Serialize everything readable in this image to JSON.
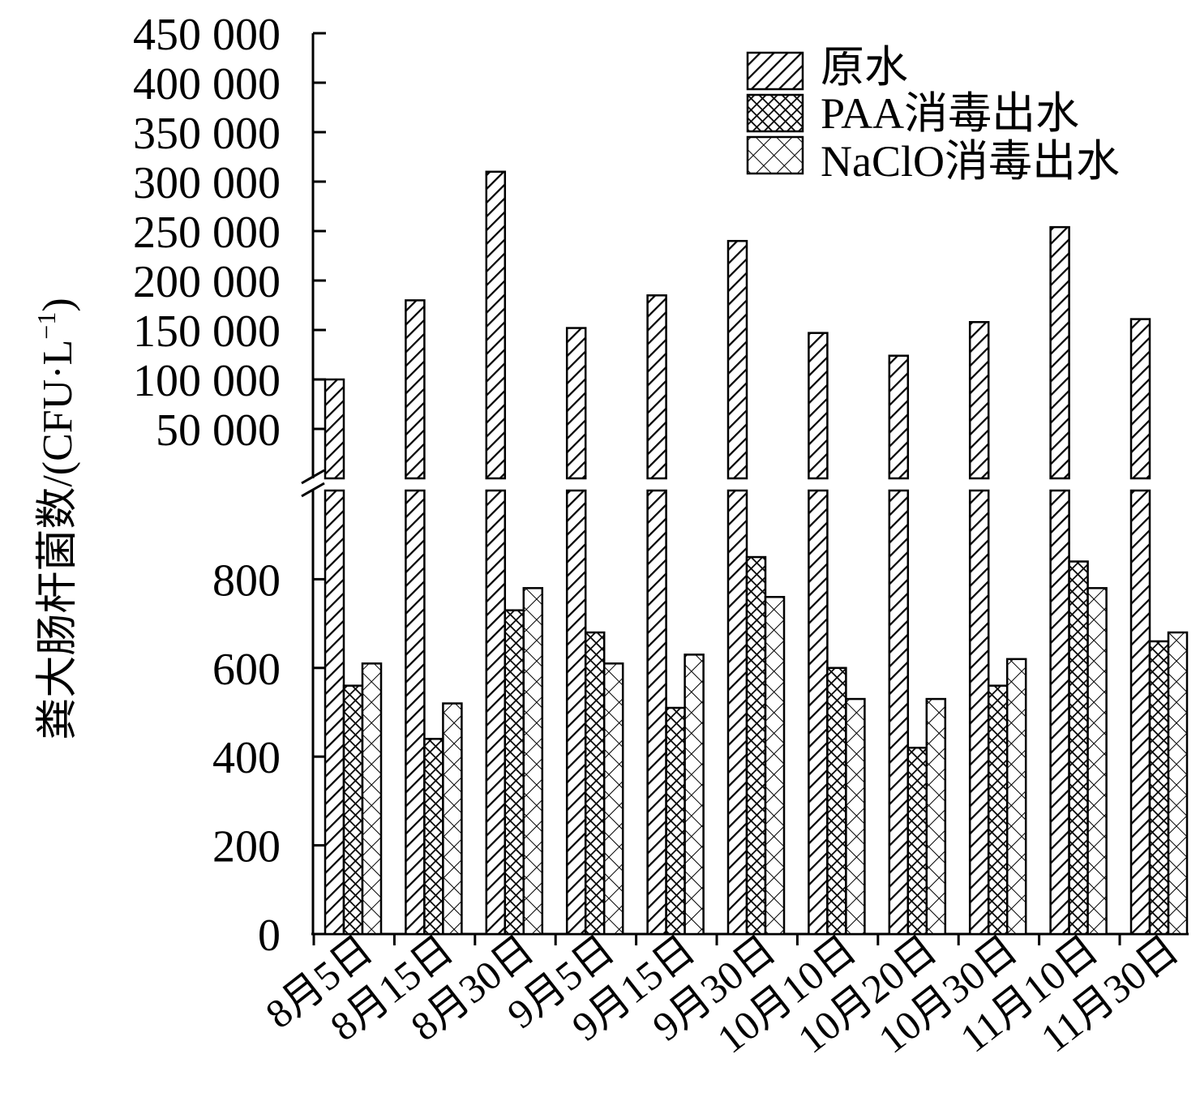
{
  "chart_data": {
    "type": "bar",
    "title": "",
    "xlabel": "",
    "ylabel": "粪大肠杆菌数/(CFU·L",
    "ylabel_sup": "−1",
    "ylabel_close": ")",
    "broken_axis": true,
    "ylim_lower": [
      0,
      1000
    ],
    "ylim_upper": [
      0,
      450000
    ],
    "yticks_lower": [
      "0",
      "200",
      "400",
      "600",
      "800"
    ],
    "yticks_lower_values": [
      0,
      200,
      400,
      600,
      800
    ],
    "yticks_upper": [
      "50 000",
      "100 000",
      "150 000",
      "200 000",
      "250 000",
      "300 000",
      "350 000",
      "400 000",
      "450 000"
    ],
    "yticks_upper_values": [
      50000,
      100000,
      150000,
      200000,
      250000,
      300000,
      350000,
      400000,
      450000
    ],
    "categories": [
      "8月5日",
      "8月15日",
      "8月30日",
      "9月5日",
      "9月15日",
      "9月30日",
      "10月10日",
      "10月20日",
      "10月30日",
      "11月10日",
      "11月30日"
    ],
    "series": [
      {
        "name": "原水",
        "pattern": "diagonal-hatch",
        "values": [
          100000,
          180000,
          310000,
          152000,
          185000,
          240000,
          147000,
          124000,
          158000,
          254000,
          161000
        ]
      },
      {
        "name": "PAA消毒出水",
        "pattern": "dense-crosshatch",
        "values": [
          560,
          440,
          730,
          680,
          510,
          850,
          600,
          420,
          560,
          840,
          660
        ]
      },
      {
        "name": "NaClO消毒出水",
        "pattern": "open-crosshatch",
        "values": [
          610,
          520,
          780,
          610,
          630,
          760,
          530,
          530,
          620,
          780,
          680
        ]
      }
    ],
    "legend_position": "top-right",
    "grid": false,
    "colors": {
      "stroke": "#000000",
      "fill": "#ffffff"
    }
  }
}
